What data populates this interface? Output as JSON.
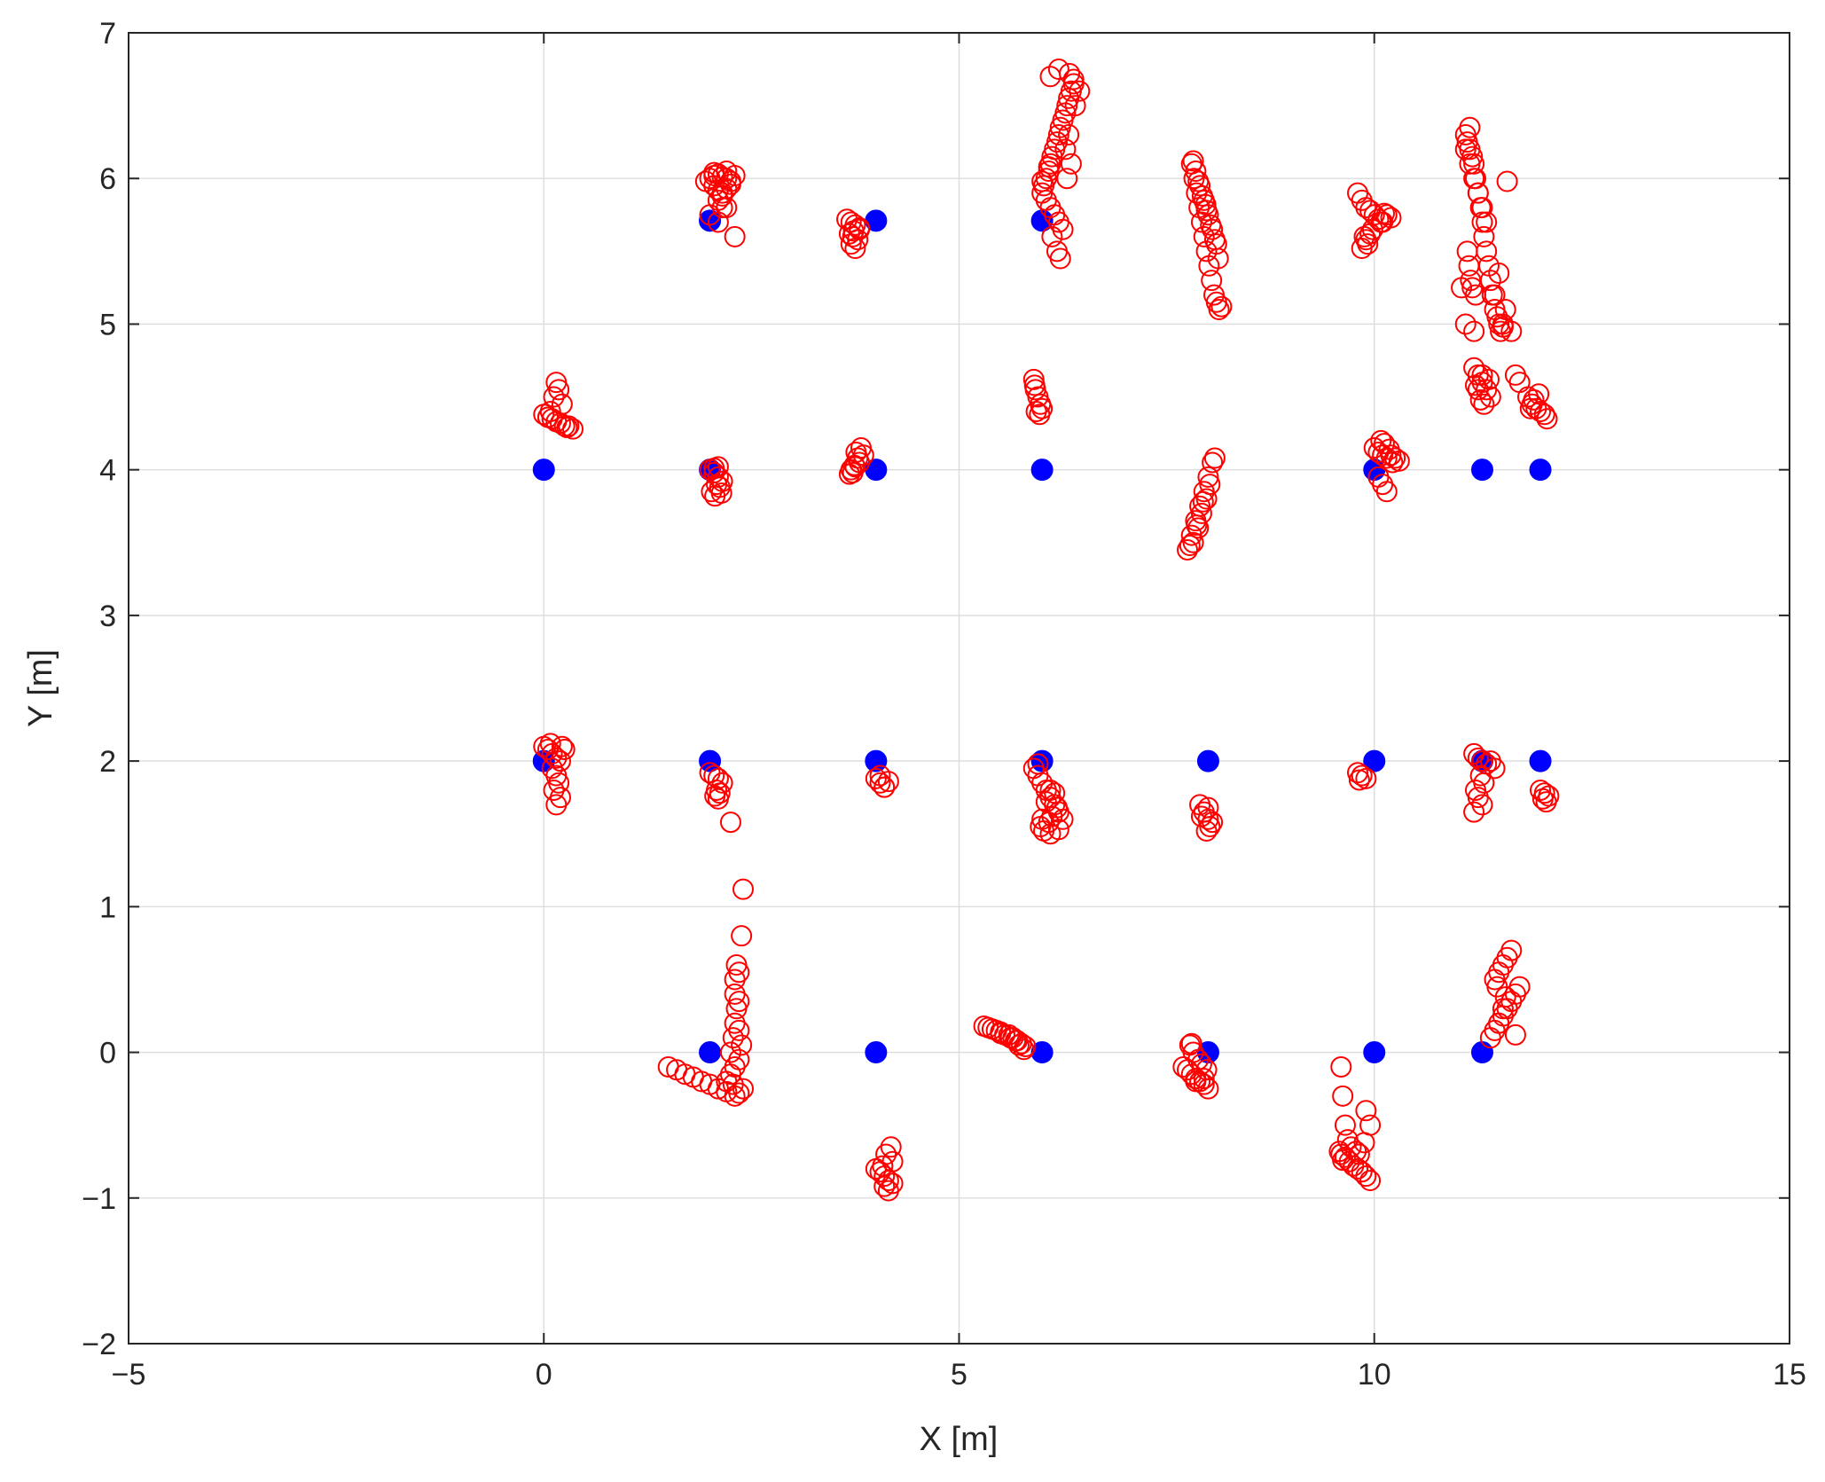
{
  "chart_data": {
    "type": "scatter",
    "title": "",
    "xlabel": "X [m]",
    "ylabel": "Y [m]",
    "xlim": [
      -5,
      15
    ],
    "ylim": [
      -2,
      7
    ],
    "xticks": [
      -5,
      0,
      5,
      10,
      15
    ],
    "yticks": [
      -2,
      -1,
      0,
      1,
      2,
      3,
      4,
      5,
      6,
      7
    ],
    "xtick_labels": [
      "−5",
      "0",
      "5",
      "10",
      "15"
    ],
    "ytick_labels": [
      "−2",
      "−1",
      "0",
      "1",
      "2",
      "3",
      "4",
      "5",
      "6",
      "7"
    ],
    "grid": true,
    "legend": "none",
    "series": [
      {
        "marker": "filled-circle",
        "color": "#0000ff",
        "x": [
          2,
          4,
          6,
          0,
          2,
          4,
          6,
          10,
          11.3,
          12,
          0,
          2,
          4,
          6,
          8,
          10,
          11.3,
          12,
          2,
          4,
          6,
          8,
          10,
          11.3
        ],
        "y": [
          5.71,
          5.71,
          5.71,
          4,
          4,
          4,
          4,
          4,
          4,
          4,
          2,
          2,
          2,
          2,
          2,
          2,
          2,
          2,
          0,
          0,
          0,
          0,
          0,
          0
        ]
      },
      {
        "marker": "open-circle",
        "color": "#ff0000",
        "x": [
          2.0,
          2.05,
          2.1,
          2.15,
          2.2,
          2.25,
          2.3,
          2.05,
          2.1,
          2.15,
          2.2,
          2.25,
          2.0,
          2.1,
          2.2,
          2.3,
          2.1,
          2.15,
          1.95,
          2.05,
          2.2,
          2.15,
          3.65,
          3.7,
          3.75,
          3.8,
          3.68,
          3.72,
          3.78,
          3.7,
          3.75,
          3.8,
          3.73,
          6.0,
          6.02,
          6.05,
          6.08,
          6.1,
          6.12,
          6.15,
          6.18,
          6.2,
          6.22,
          6.25,
          6.28,
          6.3,
          6.32,
          6.35,
          6.38,
          6.05,
          6.1,
          6.15,
          6.2,
          6.25,
          6.3,
          6.35,
          6.4,
          6.12,
          6.18,
          6.22,
          6.28,
          6.32,
          6.1,
          6.2,
          6.45,
          6.38,
          6.33,
          6.0,
          6.08,
          7.8,
          7.83,
          7.86,
          7.89,
          7.92,
          7.95,
          7.98,
          8.01,
          8.04,
          8.07,
          8.1,
          8.13,
          8.16,
          7.85,
          7.9,
          7.95,
          8.0,
          8.05,
          8.1,
          7.88,
          7.93,
          7.98,
          8.03,
          8.08,
          8.12,
          7.82,
          7.97,
          9.8,
          9.85,
          9.9,
          9.95,
          10.0,
          10.05,
          10.1,
          10.15,
          10.2,
          9.88,
          9.92,
          9.98,
          10.08,
          9.85,
          9.9,
          9.95,
          10.12,
          11.1,
          11.12,
          11.15,
          11.18,
          11.2,
          11.22,
          11.25,
          11.28,
          11.3,
          11.32,
          11.35,
          11.38,
          11.4,
          11.42,
          11.45,
          11.48,
          11.5,
          11.52,
          11.55,
          11.1,
          11.15,
          11.2,
          11.25,
          11.3,
          11.35,
          11.12,
          11.14,
          11.16,
          11.18,
          11.22,
          11.1,
          11.2,
          11.15,
          11.6,
          11.65,
          11.58,
          11.45,
          11.5,
          11.55,
          11.05,
          0.0,
          0.05,
          0.1,
          0.15,
          0.2,
          0.25,
          0.3,
          0.35,
          0.12,
          0.18,
          0.08,
          0.15,
          0.05,
          0.22,
          0.28,
          2.0,
          2.05,
          2.1,
          2.15,
          2.08,
          2.12,
          2.02,
          2.06,
          2.1,
          2.05,
          2.14,
          3.7,
          3.75,
          3.8,
          3.85,
          3.72,
          3.78,
          3.82,
          3.68,
          3.76,
          3.74,
          5.9,
          5.92,
          5.95,
          5.98,
          6.0,
          5.93,
          5.97,
          5.91,
          7.75,
          7.8,
          7.85,
          7.9,
          7.95,
          8.0,
          8.05,
          8.08,
          7.82,
          7.88,
          7.92,
          7.98,
          8.02,
          7.78,
          7.86,
          7.94,
          10.0,
          10.05,
          10.1,
          10.15,
          10.2,
          10.25,
          10.3,
          10.08,
          10.12,
          10.18,
          10.22,
          10.05,
          10.1,
          10.15,
          11.2,
          11.25,
          11.3,
          11.35,
          11.4,
          11.28,
          11.32,
          11.22,
          11.38,
          11.3,
          11.25,
          11.85,
          11.9,
          11.95,
          12.0,
          12.05,
          12.08,
          11.92,
          11.98,
          11.7,
          11.75,
          11.88,
          0.0,
          0.05,
          0.1,
          0.15,
          0.2,
          0.25,
          0.1,
          0.15,
          0.18,
          0.12,
          0.2,
          0.15,
          0.22,
          0.08,
          2.0,
          2.05,
          2.1,
          2.15,
          2.08,
          2.12,
          2.06,
          2.1,
          4.0,
          4.05,
          4.1,
          4.15,
          4.05,
          4.1,
          5.9,
          5.95,
          6.0,
          6.05,
          6.1,
          6.15,
          6.2,
          6.25,
          5.98,
          6.02,
          6.08,
          6.12,
          6.18,
          5.95,
          6.05,
          6.15,
          6.1,
          6.2,
          6.0,
          6.1,
          7.9,
          7.95,
          8.0,
          8.05,
          8.02,
          7.98,
          7.92,
          8.0,
          9.8,
          9.85,
          9.9,
          9.82,
          11.2,
          11.25,
          11.3,
          11.35,
          11.4,
          11.45,
          11.28,
          11.32,
          11.22,
          11.25,
          11.3,
          11.2,
          12.0,
          12.05,
          12.1,
          12.03,
          12.07,
          1.5,
          1.6,
          1.7,
          1.8,
          1.9,
          2.0,
          2.1,
          2.2,
          2.3,
          2.35,
          2.25,
          2.28,
          2.3,
          2.32,
          2.35,
          2.3,
          2.32,
          2.35,
          2.38,
          2.4,
          2.35,
          2.38,
          2.3,
          2.25,
          2.2,
          2.25,
          2.3,
          2.35,
          2.4,
          2.28,
          4.0,
          4.05,
          4.1,
          4.15,
          4.2,
          4.1,
          4.15,
          4.2,
          4.12,
          4.18,
          4.08,
          5.3,
          5.4,
          5.5,
          5.6,
          5.65,
          5.7,
          5.75,
          5.8,
          5.45,
          5.55,
          5.62,
          5.68,
          5.72,
          5.35,
          5.5,
          5.78,
          7.7,
          7.75,
          7.8,
          7.85,
          7.9,
          7.95,
          8.0,
          7.78,
          7.82,
          7.88,
          7.92,
          7.98,
          7.85,
          7.95,
          7.8,
          9.6,
          9.65,
          9.7,
          9.75,
          9.8,
          9.85,
          9.9,
          9.95,
          9.6,
          9.62,
          9.65,
          9.68,
          9.9,
          9.95,
          9.72,
          9.78,
          9.82,
          9.88,
          9.58,
          9.62,
          11.4,
          11.45,
          11.5,
          11.55,
          11.6,
          11.65,
          11.7,
          11.75,
          11.45,
          11.5,
          11.55,
          11.6,
          11.65,
          11.5,
          11.55,
          11.7,
          11.48,
          11.58
        ],
        "y": [
          6.0,
          6.02,
          6.03,
          6.01,
          6.0,
          5.98,
          6.02,
          5.95,
          5.92,
          5.9,
          5.93,
          5.96,
          5.75,
          5.7,
          5.8,
          5.6,
          5.85,
          5.88,
          5.98,
          6.04,
          6.05,
          5.8,
          5.72,
          5.7,
          5.68,
          5.65,
          5.62,
          5.6,
          5.58,
          5.55,
          5.52,
          5.66,
          5.64,
          5.9,
          5.95,
          6.0,
          6.05,
          6.1,
          6.15,
          6.2,
          6.25,
          6.3,
          6.35,
          6.4,
          6.45,
          6.5,
          6.55,
          6.6,
          6.65,
          5.85,
          5.8,
          5.75,
          5.7,
          5.65,
          6.0,
          6.1,
          6.5,
          5.6,
          5.5,
          5.45,
          6.2,
          6.3,
          6.7,
          6.75,
          6.6,
          6.68,
          6.72,
          5.98,
          6.08,
          6.1,
          6.0,
          5.9,
          5.8,
          5.7,
          5.6,
          5.5,
          5.4,
          5.3,
          5.2,
          5.15,
          5.1,
          5.12,
          6.05,
          5.95,
          5.85,
          5.75,
          5.65,
          5.55,
          5.98,
          5.88,
          5.78,
          5.68,
          5.58,
          5.45,
          6.12,
          5.82,
          5.9,
          5.85,
          5.8,
          5.78,
          5.75,
          5.72,
          5.7,
          5.75,
          5.73,
          5.6,
          5.55,
          5.65,
          5.7,
          5.52,
          5.58,
          5.62,
          5.76,
          6.3,
          6.25,
          6.2,
          6.15,
          6.1,
          6.0,
          5.9,
          5.8,
          5.7,
          5.6,
          5.5,
          5.4,
          5.3,
          5.2,
          5.1,
          5.05,
          5.0,
          4.95,
          4.98,
          6.2,
          6.1,
          6.0,
          5.9,
          5.8,
          5.7,
          5.5,
          5.4,
          5.3,
          5.25,
          5.2,
          5.0,
          4.95,
          6.35,
          5.98,
          4.95,
          5.1,
          5.2,
          5.35,
          5.0,
          5.25,
          4.38,
          4.36,
          4.35,
          4.33,
          4.32,
          4.3,
          4.3,
          4.28,
          4.5,
          4.55,
          4.4,
          4.6,
          4.36,
          4.45,
          4.29,
          4.0,
          3.98,
          3.95,
          3.92,
          3.9,
          3.88,
          3.85,
          3.82,
          4.02,
          4.01,
          3.84,
          4.0,
          4.02,
          4.05,
          4.1,
          3.98,
          4.08,
          4.15,
          3.97,
          4.12,
          4.03,
          4.62,
          4.55,
          4.5,
          4.45,
          4.42,
          4.4,
          4.38,
          4.58,
          3.45,
          3.55,
          3.65,
          3.75,
          3.85,
          3.95,
          4.05,
          4.08,
          3.5,
          3.6,
          3.7,
          3.8,
          3.9,
          3.48,
          3.62,
          3.78,
          4.15,
          4.12,
          4.1,
          4.08,
          4.1,
          4.08,
          4.06,
          4.2,
          4.18,
          4.14,
          4.05,
          3.95,
          3.9,
          3.85,
          4.7,
          4.65,
          4.6,
          4.55,
          4.5,
          4.48,
          4.45,
          4.58,
          4.62,
          4.65,
          4.55,
          4.5,
          4.45,
          4.42,
          4.4,
          4.38,
          4.35,
          4.48,
          4.52,
          4.65,
          4.6,
          4.42,
          2.1,
          2.08,
          2.05,
          2.02,
          2.0,
          2.08,
          1.95,
          1.9,
          1.85,
          1.8,
          1.75,
          1.7,
          2.1,
          2.12,
          1.92,
          1.9,
          1.88,
          1.85,
          1.8,
          1.78,
          1.76,
          1.74,
          1.88,
          1.85,
          1.82,
          1.86,
          1.9,
          1.82,
          1.95,
          1.9,
          1.85,
          1.8,
          1.75,
          1.7,
          1.65,
          1.6,
          1.55,
          1.52,
          1.58,
          1.62,
          1.68,
          1.98,
          1.72,
          1.78,
          1.5,
          1.53,
          1.6,
          1.8,
          1.7,
          1.65,
          1.6,
          1.58,
          1.55,
          1.52,
          1.62,
          1.68,
          1.92,
          1.9,
          1.88,
          1.87,
          2.05,
          2.02,
          2.0,
          1.98,
          2.0,
          1.95,
          1.9,
          1.85,
          1.8,
          1.75,
          1.7,
          1.65,
          1.8,
          1.78,
          1.76,
          1.74,
          1.72,
          -0.1,
          -0.12,
          -0.15,
          -0.17,
          -0.2,
          -0.22,
          -0.25,
          -0.27,
          -0.3,
          -0.28,
          0.0,
          0.1,
          0.2,
          0.3,
          0.35,
          0.5,
          0.6,
          0.55,
          0.8,
          1.12,
          -0.05,
          0.05,
          -0.1,
          -0.15,
          -0.2,
          1.58,
          0.4,
          0.15,
          -0.25,
          -0.22,
          -0.8,
          -0.82,
          -0.85,
          -0.88,
          -0.9,
          -0.92,
          -0.95,
          -0.75,
          -0.7,
          -0.65,
          -0.78,
          0.18,
          0.16,
          0.14,
          0.12,
          0.1,
          0.08,
          0.06,
          0.04,
          0.15,
          0.12,
          0.1,
          0.08,
          0.05,
          0.17,
          0.13,
          0.02,
          -0.1,
          -0.12,
          -0.15,
          -0.18,
          -0.2,
          -0.22,
          -0.25,
          0.05,
          0.0,
          -0.05,
          -0.08,
          -0.12,
          -0.2,
          -0.18,
          0.06,
          -0.7,
          -0.72,
          -0.75,
          -0.78,
          -0.8,
          -0.82,
          -0.85,
          -0.88,
          -0.1,
          -0.3,
          -0.5,
          -0.6,
          -0.4,
          -0.5,
          -0.65,
          -0.68,
          -0.7,
          -0.62,
          -0.68,
          -0.74,
          0.1,
          0.15,
          0.2,
          0.25,
          0.3,
          0.35,
          0.4,
          0.45,
          0.5,
          0.55,
          0.6,
          0.65,
          0.7,
          0.2,
          0.3,
          0.12,
          0.45,
          0.38
        ]
      }
    ]
  }
}
